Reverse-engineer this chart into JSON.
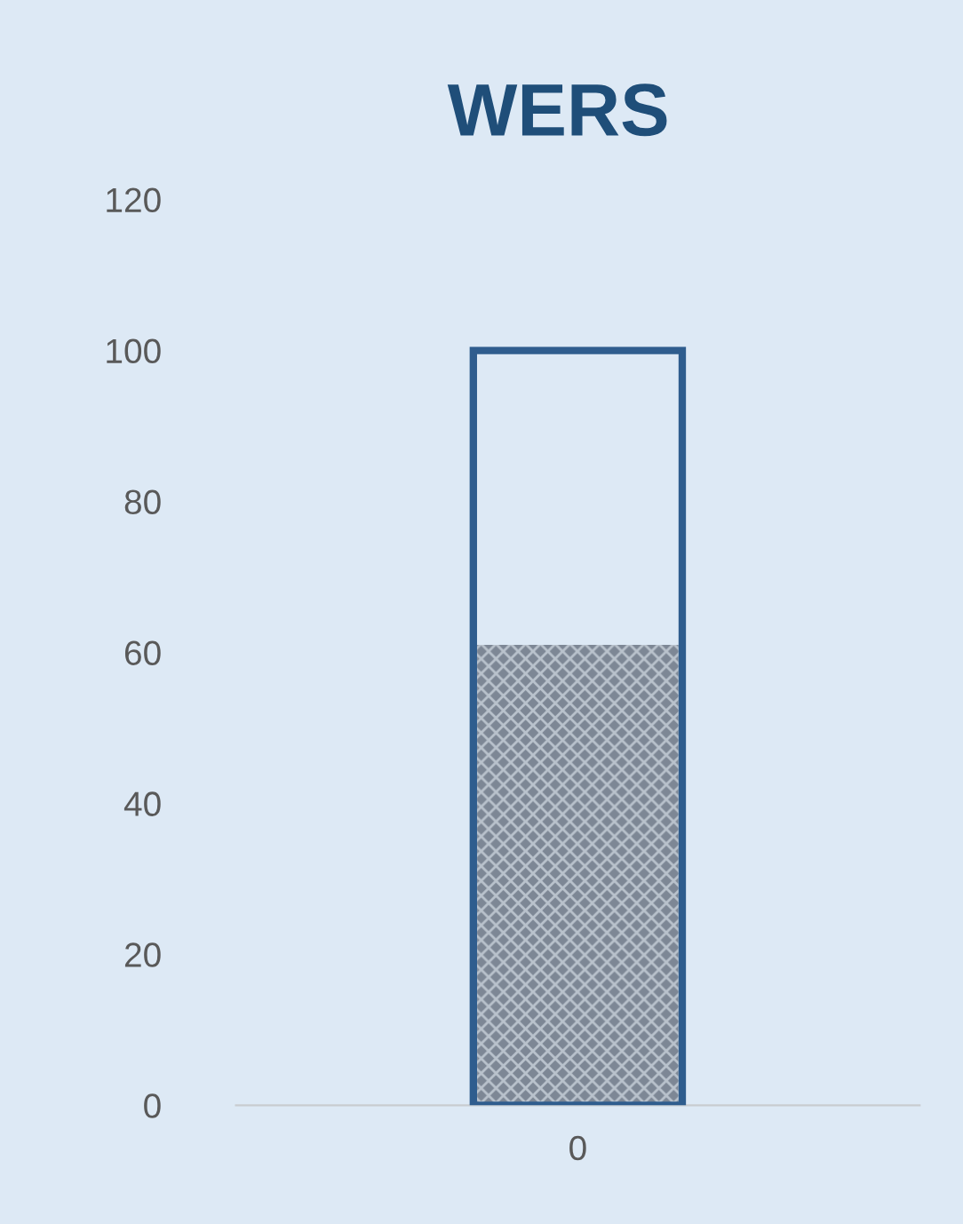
{
  "chart_data": {
    "type": "bar",
    "title": "WERS",
    "categories": [
      "0"
    ],
    "series": [
      {
        "color": "#2f5d8e",
        "values": [
          100
        ]
      },
      {
        "color": "#7d8795",
        "values": [
          61
        ]
      }
    ],
    "ylim": [
      0,
      120
    ],
    "yticks": [
      0,
      20,
      40,
      60,
      80,
      100,
      120
    ],
    "grid": false,
    "legend": false
  }
}
